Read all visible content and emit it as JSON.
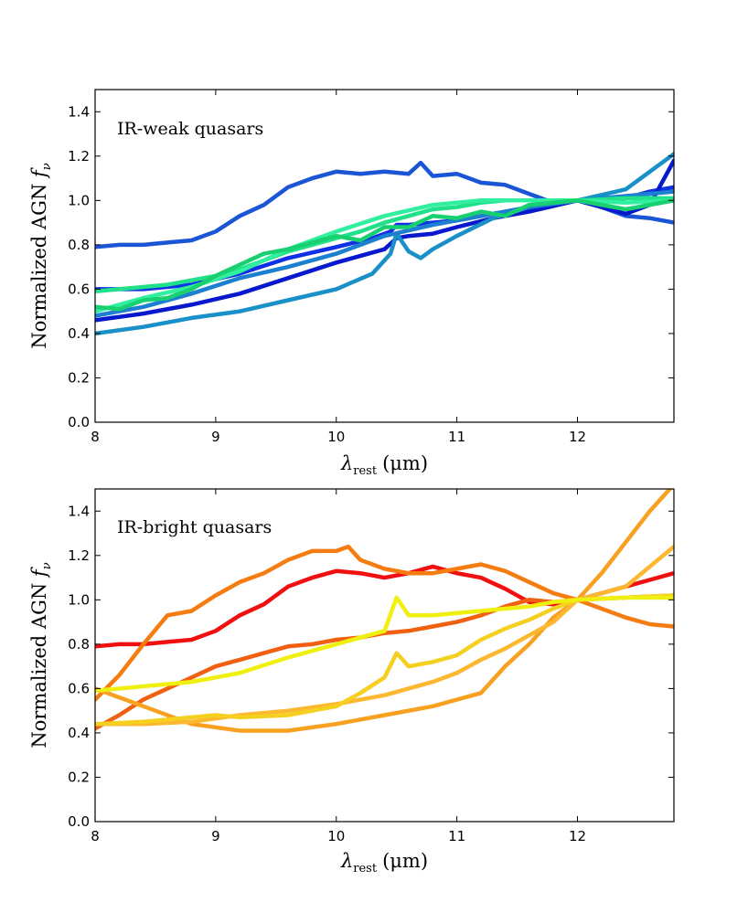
{
  "chart_data": [
    {
      "type": "line",
      "title": "IR-weak quasars",
      "xlabel_symbol": "λ",
      "xlabel_sub": "rest",
      "xlabel_unit": "(μm)",
      "ylabel_text": "Normalized AGN ",
      "ylabel_symbol": "f",
      "ylabel_sub": "ν",
      "xlim": [
        8,
        12.8
      ],
      "ylim": [
        0,
        1.5
      ],
      "xticks": [
        8,
        9,
        10,
        11,
        12
      ],
      "yticks": [
        0.0,
        0.2,
        0.4,
        0.6,
        0.8,
        1.0,
        1.2,
        1.4
      ],
      "series": [
        {
          "color": "#1a55d6",
          "x": [
            8,
            8.2,
            8.4,
            8.6,
            8.8,
            9.0,
            9.2,
            9.4,
            9.6,
            9.8,
            10.0,
            10.2,
            10.4,
            10.6,
            10.7,
            10.8,
            11.0,
            11.2,
            11.4,
            11.6,
            11.8,
            12.0,
            12.2,
            12.4,
            12.6,
            12.8
          ],
          "y": [
            0.79,
            0.8,
            0.8,
            0.81,
            0.82,
            0.86,
            0.93,
            0.98,
            1.06,
            1.1,
            1.13,
            1.12,
            1.13,
            1.12,
            1.17,
            1.11,
            1.12,
            1.08,
            1.07,
            1.03,
            0.99,
            1.0,
            0.97,
            0.93,
            0.92,
            0.9
          ]
        },
        {
          "color": "#1030e6",
          "x": [
            8,
            8.4,
            8.8,
            9.2,
            9.6,
            10.0,
            10.3,
            10.45,
            10.5,
            10.6,
            10.8,
            11.0,
            11.3,
            11.6,
            12.0,
            12.2,
            12.4,
            12.6,
            12.8
          ],
          "y": [
            0.6,
            0.6,
            0.62,
            0.67,
            0.74,
            0.79,
            0.83,
            0.86,
            0.89,
            0.89,
            0.9,
            0.91,
            0.94,
            0.96,
            1.0,
            1.0,
            1.01,
            1.04,
            1.06
          ]
        },
        {
          "color": "#0818cc",
          "x": [
            8,
            8.4,
            8.8,
            9.2,
            9.6,
            10.0,
            10.4,
            10.5,
            10.6,
            10.8,
            11.0,
            11.3,
            11.6,
            12.0,
            12.2,
            12.4,
            12.6,
            12.8
          ],
          "y": [
            0.46,
            0.49,
            0.53,
            0.58,
            0.65,
            0.72,
            0.78,
            0.83,
            0.84,
            0.85,
            0.88,
            0.92,
            0.95,
            1.0,
            0.97,
            0.94,
            0.98,
            1.18
          ]
        },
        {
          "color": "#1a90c8",
          "x": [
            8,
            8.4,
            8.8,
            9.2,
            9.6,
            10.0,
            10.3,
            10.45,
            10.5,
            10.6,
            10.7,
            10.8,
            11.0,
            11.3,
            11.6,
            12.0,
            12.4,
            12.8
          ],
          "y": [
            0.4,
            0.43,
            0.47,
            0.5,
            0.55,
            0.6,
            0.67,
            0.76,
            0.85,
            0.77,
            0.74,
            0.78,
            0.84,
            0.92,
            0.97,
            1.0,
            1.05,
            1.21
          ]
        },
        {
          "color": "#1c7fcf",
          "x": [
            8,
            8.4,
            8.8,
            9.2,
            9.6,
            10.0,
            10.4,
            10.8,
            11.2,
            11.6,
            12.0,
            12.4,
            12.8
          ],
          "y": [
            0.48,
            0.52,
            0.58,
            0.65,
            0.7,
            0.76,
            0.84,
            0.89,
            0.93,
            0.97,
            1.0,
            1.02,
            1.04
          ]
        },
        {
          "color": "#20e08a",
          "x": [
            8,
            8.2,
            8.4,
            8.6,
            8.8,
            9.0,
            9.2,
            9.4,
            9.6,
            9.8,
            10.0,
            10.2,
            10.4,
            10.6,
            10.8,
            11.0,
            11.2,
            11.4,
            11.6,
            11.8,
            12.0,
            12.4,
            12.8
          ],
          "y": [
            0.59,
            0.6,
            0.61,
            0.62,
            0.64,
            0.66,
            0.69,
            0.73,
            0.77,
            0.8,
            0.83,
            0.86,
            0.9,
            0.93,
            0.96,
            0.97,
            0.99,
            1.0,
            1.0,
            1.0,
            1.0,
            1.01,
            1.01
          ]
        },
        {
          "color": "#30f0a0",
          "x": [
            8,
            8.4,
            8.8,
            9.2,
            9.6,
            10.0,
            10.4,
            10.8,
            11.2,
            11.6,
            12.0,
            12.4,
            12.8
          ],
          "y": [
            0.5,
            0.56,
            0.61,
            0.68,
            0.78,
            0.86,
            0.93,
            0.98,
            1.0,
            1.0,
            1.0,
            0.99,
            1.0
          ]
        },
        {
          "color": "#18d070",
          "x": [
            8,
            8.2,
            8.4,
            8.6,
            8.8,
            9.0,
            9.2,
            9.4,
            9.6,
            9.8,
            10.0,
            10.2,
            10.4,
            10.6,
            10.8,
            11.0,
            11.2,
            11.4,
            11.6,
            12.0,
            12.4,
            12.8
          ],
          "y": [
            0.52,
            0.51,
            0.55,
            0.56,
            0.6,
            0.66,
            0.71,
            0.76,
            0.78,
            0.81,
            0.84,
            0.82,
            0.88,
            0.88,
            0.93,
            0.92,
            0.95,
            0.93,
            0.98,
            1.0,
            0.96,
            1.0
          ]
        }
      ]
    },
    {
      "type": "line",
      "title": "IR-bright quasars",
      "xlabel_symbol": "λ",
      "xlabel_sub": "rest",
      "xlabel_unit": "(μm)",
      "ylabel_text": "Normalized AGN ",
      "ylabel_symbol": "f",
      "ylabel_sub": "ν",
      "xlim": [
        8,
        12.8
      ],
      "ylim": [
        0,
        1.5
      ],
      "xticks": [
        8,
        9,
        10,
        11,
        12
      ],
      "yticks": [
        0.0,
        0.2,
        0.4,
        0.6,
        0.8,
        1.0,
        1.2,
        1.4
      ],
      "series": [
        {
          "color": "#f01010",
          "x": [
            8,
            8.2,
            8.4,
            8.6,
            8.8,
            9.0,
            9.2,
            9.4,
            9.6,
            9.8,
            10.0,
            10.2,
            10.4,
            10.6,
            10.8,
            11.0,
            11.2,
            11.4,
            11.6,
            11.8,
            12.0,
            12.2,
            12.4,
            12.6,
            12.8
          ],
          "y": [
            0.79,
            0.8,
            0.8,
            0.81,
            0.82,
            0.86,
            0.93,
            0.98,
            1.06,
            1.1,
            1.13,
            1.12,
            1.1,
            1.12,
            1.15,
            1.12,
            1.1,
            1.05,
            0.99,
            0.98,
            1.0,
            1.03,
            1.06,
            1.09,
            1.12
          ]
        },
        {
          "color": "#f06010",
          "x": [
            8,
            8.2,
            8.4,
            8.6,
            8.8,
            9.0,
            9.2,
            9.4,
            9.6,
            9.8,
            10.0,
            10.2,
            10.4,
            10.6,
            10.8,
            11.0,
            11.2,
            11.4,
            11.6,
            11.8,
            12.0,
            12.4,
            12.8
          ],
          "y": [
            0.42,
            0.48,
            0.55,
            0.6,
            0.65,
            0.7,
            0.73,
            0.76,
            0.79,
            0.8,
            0.82,
            0.83,
            0.85,
            0.86,
            0.88,
            0.9,
            0.93,
            0.97,
            1.0,
            0.99,
            1.0,
            1.01,
            1.02
          ]
        },
        {
          "color": "#f57c10",
          "x": [
            8,
            8.2,
            8.4,
            8.6,
            8.8,
            9.0,
            9.2,
            9.4,
            9.6,
            9.8,
            10.0,
            10.1,
            10.2,
            10.4,
            10.6,
            10.8,
            11.0,
            11.2,
            11.4,
            11.6,
            11.8,
            12.0,
            12.2,
            12.4,
            12.6,
            12.8
          ],
          "y": [
            0.55,
            0.66,
            0.8,
            0.93,
            0.95,
            1.02,
            1.08,
            1.12,
            1.18,
            1.22,
            1.22,
            1.24,
            1.18,
            1.14,
            1.12,
            1.12,
            1.14,
            1.16,
            1.13,
            1.08,
            1.03,
            1.0,
            0.96,
            0.92,
            0.89,
            0.88
          ]
        },
        {
          "color": "#f8a020",
          "x": [
            8,
            8.4,
            8.8,
            9.2,
            9.6,
            10.0,
            10.4,
            10.8,
            11.2,
            11.4,
            11.6,
            11.8,
            12.0,
            12.2,
            12.4,
            12.6,
            12.8
          ],
          "y": [
            0.6,
            0.52,
            0.44,
            0.41,
            0.41,
            0.44,
            0.48,
            0.52,
            0.58,
            0.7,
            0.8,
            0.92,
            1.0,
            1.12,
            1.26,
            1.4,
            1.52
          ]
        },
        {
          "color": "#fbb830",
          "x": [
            8,
            8.4,
            8.8,
            9.2,
            9.6,
            10.0,
            10.4,
            10.8,
            11.0,
            11.2,
            11.4,
            11.6,
            11.8,
            12.0,
            12.4,
            12.8
          ],
          "y": [
            0.44,
            0.44,
            0.45,
            0.48,
            0.5,
            0.53,
            0.57,
            0.63,
            0.67,
            0.73,
            0.78,
            0.84,
            0.9,
            1.0,
            1.06,
            1.24
          ]
        },
        {
          "color": "#f5d020",
          "x": [
            8,
            8.4,
            8.8,
            9.0,
            9.2,
            9.6,
            10.0,
            10.2,
            10.4,
            10.5,
            10.6,
            10.8,
            11.0,
            11.2,
            11.4,
            11.6,
            11.8,
            12.0,
            12.4,
            12.8
          ],
          "y": [
            0.44,
            0.45,
            0.47,
            0.48,
            0.47,
            0.48,
            0.52,
            0.58,
            0.65,
            0.76,
            0.7,
            0.72,
            0.75,
            0.82,
            0.87,
            0.91,
            0.96,
            1.0,
            1.01,
            1.02
          ]
        },
        {
          "color": "#f0f010",
          "x": [
            8,
            8.4,
            8.8,
            9.2,
            9.6,
            10.0,
            10.4,
            10.5,
            10.6,
            10.8,
            11.0,
            11.2,
            11.4,
            11.6,
            11.8,
            12.0,
            12.4,
            12.8
          ],
          "y": [
            0.59,
            0.61,
            0.63,
            0.67,
            0.74,
            0.8,
            0.86,
            1.01,
            0.93,
            0.93,
            0.94,
            0.95,
            0.96,
            0.97,
            0.99,
            1.0,
            1.01,
            1.01
          ]
        }
      ]
    }
  ]
}
